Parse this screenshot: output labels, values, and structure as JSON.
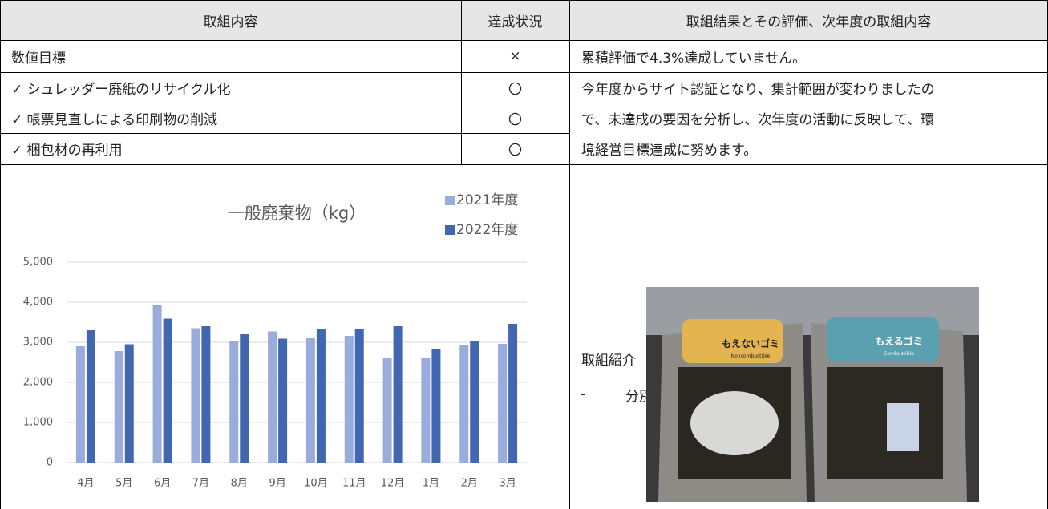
{
  "table": {
    "headers": [
      "取組内容",
      "達成状況",
      "取組結果とその評価、次年度の取組内容"
    ],
    "rows": [
      [
        "数値目標",
        "×"
      ],
      [
        "✓ シュレッダー廃紙のリサイクル化",
        "〇"
      ],
      [
        "✓ 帳票見直しによる印刷物の削減",
        "〇"
      ],
      [
        "✓ 梱包材の再利用",
        "〇"
      ]
    ]
  },
  "results": {
    "summary": "累積評価で4.3%達成していません。",
    "plan": [
      "今年度からサイト認証となり、集計範囲が変わりましたの",
      "で、未達成の要因を分析し、次年度の活動に反映して、環",
      "境経営目標達成に努めます。"
    ]
  },
  "introduction": {
    "heading": "取組紹介",
    "item_marker": "-",
    "item": "分別の徹底",
    "photo_labels": [
      "もえないゴミ",
      "Noncombustible",
      "もえるゴミ",
      "Combustible"
    ]
  },
  "chart_data": {
    "type": "bar",
    "title": "一般廃棄物（kg）",
    "categories": [
      "4月",
      "5月",
      "6月",
      "7月",
      "8月",
      "9月",
      "10月",
      "11月",
      "12月",
      "1月",
      "2月",
      "3月"
    ],
    "series": [
      {
        "name": "2021年度",
        "color": "#9aacdb",
        "values": [
          2900,
          2780,
          3930,
          3350,
          3030,
          3270,
          3100,
          3160,
          2600,
          2600,
          2930,
          2960
        ]
      },
      {
        "name": "2022年度",
        "color": "#4267b2",
        "values": [
          3300,
          2950,
          3590,
          3400,
          3200,
          3090,
          3330,
          3320,
          3400,
          2830,
          3030,
          3460
        ]
      }
    ],
    "ylim": [
      0,
      5000
    ],
    "yticks": [
      0,
      {
        "value": 1000,
        "label": "1,000"
      },
      {
        "value": 2000,
        "label": "2,000"
      },
      {
        "value": 3000,
        "label": "3,000"
      },
      {
        "value": 4000,
        "label": "4,000"
      },
      {
        "value": 5000,
        "label": "5,000"
      }
    ],
    "grid": true,
    "legend": "top-right"
  }
}
